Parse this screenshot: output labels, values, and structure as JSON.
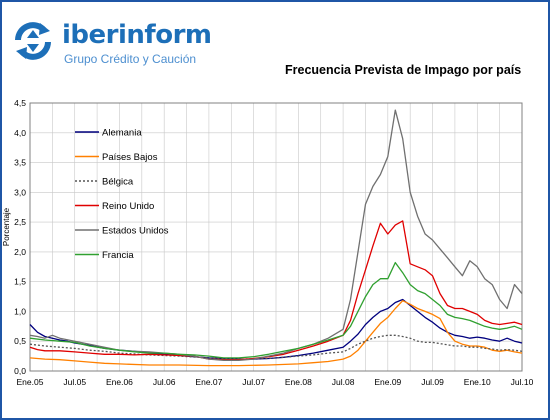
{
  "logo": {
    "name_prefix": "iber",
    "name_suffix": "inform",
    "tagline": "Grupo Crédito y Caución",
    "colors": {
      "text": "#1d6fb8",
      "arrows": "#1d6fb8",
      "tagline": "#4d8fd0"
    }
  },
  "frame_color": "#1f56a6",
  "chart_data": {
    "type": "line",
    "title": "Frecuencia Prevista de Impago por país",
    "ylabel": "Porcentaje",
    "xlabel": "",
    "ylim": [
      0,
      4.5
    ],
    "yticks": [
      "0,0",
      "0,5",
      "1,0",
      "1,5",
      "2,0",
      "2,5",
      "3,0",
      "3,5",
      "4,0",
      "4,5"
    ],
    "x_tick_labels": [
      "Ene.05",
      "Jul.05",
      "Ene.06",
      "Jul.06",
      "Ene.07",
      "Jul.07",
      "Ene.08",
      "Jul.08",
      "Ene.09",
      "Jul.09",
      "Ene.10",
      "Jul.10"
    ],
    "x_tick_months": [
      0,
      6,
      12,
      18,
      24,
      30,
      36,
      42,
      48,
      54,
      60,
      66
    ],
    "x_range_months": [
      0,
      66
    ],
    "grid": true,
    "legend_position": "top-left inside",
    "series": [
      {
        "name": "Alemania",
        "color": "#00007f",
        "dash": "none",
        "points": [
          [
            0,
            0.78
          ],
          [
            1,
            0.65
          ],
          [
            2,
            0.58
          ],
          [
            3,
            0.55
          ],
          [
            4,
            0.52
          ],
          [
            5,
            0.5
          ],
          [
            6,
            0.47
          ],
          [
            8,
            0.43
          ],
          [
            10,
            0.38
          ],
          [
            12,
            0.35
          ],
          [
            14,
            0.33
          ],
          [
            16,
            0.3
          ],
          [
            18,
            0.28
          ],
          [
            20,
            0.26
          ],
          [
            22,
            0.24
          ],
          [
            24,
            0.22
          ],
          [
            26,
            0.21
          ],
          [
            28,
            0.2
          ],
          [
            30,
            0.2
          ],
          [
            32,
            0.21
          ],
          [
            34,
            0.23
          ],
          [
            36,
            0.26
          ],
          [
            38,
            0.3
          ],
          [
            40,
            0.35
          ],
          [
            42,
            0.4
          ],
          [
            43,
            0.5
          ],
          [
            44,
            0.62
          ],
          [
            45,
            0.78
          ],
          [
            46,
            0.9
          ],
          [
            47,
            1.0
          ],
          [
            48,
            1.05
          ],
          [
            49,
            1.15
          ],
          [
            50,
            1.2
          ],
          [
            51,
            1.1
          ],
          [
            52,
            1.0
          ],
          [
            53,
            0.9
          ],
          [
            54,
            0.82
          ],
          [
            55,
            0.72
          ],
          [
            56,
            0.65
          ],
          [
            57,
            0.6
          ],
          [
            58,
            0.58
          ],
          [
            59,
            0.55
          ],
          [
            60,
            0.57
          ],
          [
            61,
            0.55
          ],
          [
            62,
            0.52
          ],
          [
            63,
            0.5
          ],
          [
            64,
            0.55
          ],
          [
            65,
            0.5
          ],
          [
            66,
            0.47
          ]
        ]
      },
      {
        "name": "Países Bajos",
        "color": "#ff8000",
        "dash": "none",
        "points": [
          [
            0,
            0.22
          ],
          [
            2,
            0.2
          ],
          [
            4,
            0.19
          ],
          [
            6,
            0.17
          ],
          [
            8,
            0.15
          ],
          [
            10,
            0.13
          ],
          [
            12,
            0.12
          ],
          [
            16,
            0.1
          ],
          [
            20,
            0.1
          ],
          [
            24,
            0.09
          ],
          [
            28,
            0.09
          ],
          [
            32,
            0.1
          ],
          [
            36,
            0.12
          ],
          [
            38,
            0.14
          ],
          [
            40,
            0.16
          ],
          [
            42,
            0.2
          ],
          [
            43,
            0.25
          ],
          [
            44,
            0.35
          ],
          [
            45,
            0.5
          ],
          [
            46,
            0.65
          ],
          [
            47,
            0.8
          ],
          [
            48,
            0.9
          ],
          [
            49,
            1.05
          ],
          [
            50,
            1.18
          ],
          [
            51,
            1.12
          ],
          [
            52,
            1.05
          ],
          [
            53,
            1.0
          ],
          [
            54,
            0.95
          ],
          [
            55,
            0.88
          ],
          [
            56,
            0.65
          ],
          [
            57,
            0.5
          ],
          [
            58,
            0.45
          ],
          [
            59,
            0.42
          ],
          [
            60,
            0.42
          ],
          [
            61,
            0.4
          ],
          [
            62,
            0.35
          ],
          [
            63,
            0.33
          ],
          [
            64,
            0.35
          ],
          [
            65,
            0.32
          ],
          [
            66,
            0.3
          ]
        ]
      },
      {
        "name": "Bélgica",
        "color": "#555555",
        "dash": "2,2",
        "points": [
          [
            0,
            0.45
          ],
          [
            2,
            0.42
          ],
          [
            4,
            0.4
          ],
          [
            6,
            0.38
          ],
          [
            8,
            0.35
          ],
          [
            10,
            0.33
          ],
          [
            12,
            0.3
          ],
          [
            16,
            0.27
          ],
          [
            20,
            0.25
          ],
          [
            24,
            0.22
          ],
          [
            28,
            0.2
          ],
          [
            32,
            0.21
          ],
          [
            36,
            0.25
          ],
          [
            38,
            0.27
          ],
          [
            40,
            0.3
          ],
          [
            42,
            0.32
          ],
          [
            43,
            0.38
          ],
          [
            44,
            0.45
          ],
          [
            45,
            0.5
          ],
          [
            46,
            0.55
          ],
          [
            47,
            0.58
          ],
          [
            48,
            0.6
          ],
          [
            49,
            0.6
          ],
          [
            50,
            0.58
          ],
          [
            51,
            0.55
          ],
          [
            52,
            0.5
          ],
          [
            53,
            0.48
          ],
          [
            54,
            0.48
          ],
          [
            55,
            0.46
          ],
          [
            56,
            0.44
          ],
          [
            57,
            0.42
          ],
          [
            58,
            0.42
          ],
          [
            59,
            0.4
          ],
          [
            60,
            0.4
          ],
          [
            61,
            0.38
          ],
          [
            62,
            0.37
          ],
          [
            63,
            0.35
          ],
          [
            64,
            0.36
          ],
          [
            65,
            0.35
          ],
          [
            66,
            0.33
          ]
        ]
      },
      {
        "name": "Reino Unido",
        "color": "#e00000",
        "dash": "none",
        "points": [
          [
            0,
            0.4
          ],
          [
            1,
            0.36
          ],
          [
            2,
            0.34
          ],
          [
            4,
            0.34
          ],
          [
            6,
            0.32
          ],
          [
            8,
            0.3
          ],
          [
            10,
            0.28
          ],
          [
            12,
            0.28
          ],
          [
            14,
            0.27
          ],
          [
            16,
            0.28
          ],
          [
            18,
            0.27
          ],
          [
            20,
            0.26
          ],
          [
            22,
            0.25
          ],
          [
            24,
            0.2
          ],
          [
            26,
            0.19
          ],
          [
            28,
            0.19
          ],
          [
            30,
            0.21
          ],
          [
            32,
            0.24
          ],
          [
            34,
            0.28
          ],
          [
            36,
            0.35
          ],
          [
            38,
            0.42
          ],
          [
            40,
            0.5
          ],
          [
            42,
            0.6
          ],
          [
            43,
            0.85
          ],
          [
            44,
            1.3
          ],
          [
            45,
            1.7
          ],
          [
            46,
            2.1
          ],
          [
            47,
            2.48
          ],
          [
            48,
            2.3
          ],
          [
            49,
            2.45
          ],
          [
            50,
            2.52
          ],
          [
            51,
            1.8
          ],
          [
            52,
            1.75
          ],
          [
            53,
            1.7
          ],
          [
            54,
            1.6
          ],
          [
            55,
            1.3
          ],
          [
            56,
            1.1
          ],
          [
            57,
            1.05
          ],
          [
            58,
            1.05
          ],
          [
            59,
            1.0
          ],
          [
            60,
            0.95
          ],
          [
            61,
            0.85
          ],
          [
            62,
            0.8
          ],
          [
            63,
            0.78
          ],
          [
            64,
            0.8
          ],
          [
            65,
            0.82
          ],
          [
            66,
            0.78
          ]
        ]
      },
      {
        "name": "Estados Unidos",
        "color": "#707070",
        "dash": "none",
        "points": [
          [
            0,
            0.6
          ],
          [
            1,
            0.58
          ],
          [
            2,
            0.55
          ],
          [
            3,
            0.6
          ],
          [
            4,
            0.55
          ],
          [
            6,
            0.5
          ],
          [
            8,
            0.45
          ],
          [
            10,
            0.4
          ],
          [
            12,
            0.35
          ],
          [
            14,
            0.33
          ],
          [
            16,
            0.32
          ],
          [
            18,
            0.3
          ],
          [
            20,
            0.28
          ],
          [
            22,
            0.25
          ],
          [
            24,
            0.2
          ],
          [
            26,
            0.18
          ],
          [
            28,
            0.18
          ],
          [
            30,
            0.2
          ],
          [
            32,
            0.25
          ],
          [
            34,
            0.3
          ],
          [
            36,
            0.38
          ],
          [
            38,
            0.45
          ],
          [
            40,
            0.55
          ],
          [
            42,
            0.7
          ],
          [
            43,
            1.2
          ],
          [
            44,
            2.0
          ],
          [
            45,
            2.8
          ],
          [
            46,
            3.1
          ],
          [
            47,
            3.3
          ],
          [
            48,
            3.6
          ],
          [
            49,
            4.38
          ],
          [
            50,
            3.9
          ],
          [
            51,
            3.0
          ],
          [
            52,
            2.6
          ],
          [
            53,
            2.3
          ],
          [
            54,
            2.2
          ],
          [
            55,
            2.05
          ],
          [
            56,
            1.9
          ],
          [
            57,
            1.75
          ],
          [
            58,
            1.6
          ],
          [
            59,
            1.85
          ],
          [
            60,
            1.75
          ],
          [
            61,
            1.55
          ],
          [
            62,
            1.45
          ],
          [
            63,
            1.2
          ],
          [
            64,
            1.05
          ],
          [
            65,
            1.45
          ],
          [
            66,
            1.3
          ]
        ]
      },
      {
        "name": "Francia",
        "color": "#30a030",
        "dash": "none",
        "points": [
          [
            0,
            0.55
          ],
          [
            2,
            0.52
          ],
          [
            4,
            0.5
          ],
          [
            6,
            0.48
          ],
          [
            8,
            0.42
          ],
          [
            10,
            0.38
          ],
          [
            12,
            0.35
          ],
          [
            14,
            0.32
          ],
          [
            16,
            0.3
          ],
          [
            18,
            0.3
          ],
          [
            20,
            0.28
          ],
          [
            22,
            0.27
          ],
          [
            24,
            0.25
          ],
          [
            26,
            0.22
          ],
          [
            28,
            0.22
          ],
          [
            30,
            0.24
          ],
          [
            32,
            0.28
          ],
          [
            34,
            0.33
          ],
          [
            36,
            0.38
          ],
          [
            38,
            0.45
          ],
          [
            40,
            0.52
          ],
          [
            42,
            0.6
          ],
          [
            43,
            0.75
          ],
          [
            44,
            1.0
          ],
          [
            45,
            1.25
          ],
          [
            46,
            1.45
          ],
          [
            47,
            1.55
          ],
          [
            48,
            1.55
          ],
          [
            49,
            1.82
          ],
          [
            50,
            1.65
          ],
          [
            51,
            1.45
          ],
          [
            52,
            1.35
          ],
          [
            53,
            1.3
          ],
          [
            54,
            1.2
          ],
          [
            55,
            1.1
          ],
          [
            56,
            0.95
          ],
          [
            57,
            0.9
          ],
          [
            58,
            0.88
          ],
          [
            59,
            0.85
          ],
          [
            60,
            0.8
          ],
          [
            61,
            0.75
          ],
          [
            62,
            0.72
          ],
          [
            63,
            0.7
          ],
          [
            64,
            0.72
          ],
          [
            65,
            0.75
          ],
          [
            66,
            0.7
          ]
        ]
      }
    ]
  }
}
